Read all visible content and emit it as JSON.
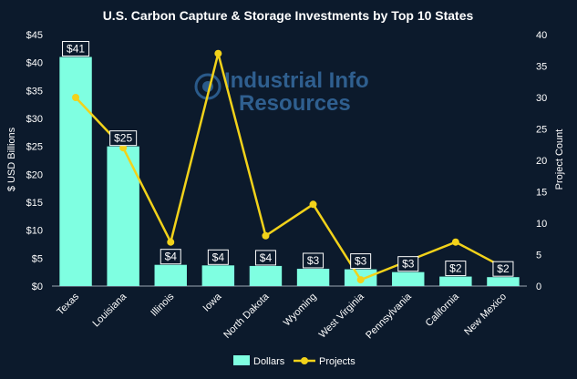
{
  "chart_data": {
    "type": "bar",
    "title": "U.S. Carbon Capture & Storage Investments by Top 10 States",
    "ylabel": "$ USD Billions",
    "y2label": "Project Count",
    "watermark": "Industrial Info Resources",
    "categories": [
      "Texas",
      "Louisiana",
      "Illinois",
      "Iowa",
      "North Dakota",
      "Wyoming",
      "West Virginia",
      "Pennsylvania",
      "California",
      "New Mexico"
    ],
    "ylim": [
      0,
      45
    ],
    "y_ticks": [
      0,
      5,
      10,
      15,
      20,
      25,
      30,
      35,
      40,
      45
    ],
    "y_tick_labels": [
      "$0",
      "$5",
      "$10",
      "$15",
      "$20",
      "$25",
      "$30",
      "$35",
      "$40",
      "$45"
    ],
    "y2lim": [
      0,
      40
    ],
    "y2_ticks": [
      0,
      5,
      10,
      15,
      20,
      25,
      30,
      35,
      40
    ],
    "y2_tick_labels": [
      "0",
      "5",
      "10",
      "15",
      "20",
      "25",
      "30",
      "35",
      "40"
    ],
    "series": [
      {
        "name": "Dollars",
        "type": "bar",
        "axis": "left",
        "color": "#7fffe1",
        "values": [
          41,
          25,
          3.8,
          3.7,
          3.6,
          3.1,
          3.0,
          2.5,
          1.7,
          1.6
        ],
        "data_labels": [
          "$41",
          "$25",
          "$4",
          "$4",
          "$4",
          "$3",
          "$3",
          "$3",
          "$2",
          "$2"
        ]
      },
      {
        "name": "Projects",
        "type": "line",
        "axis": "right",
        "color": "#f2d21a",
        "values": [
          30,
          22,
          7,
          37,
          8,
          13,
          1,
          4,
          7,
          3
        ]
      }
    ],
    "legend_position": "bottom",
    "grid": false
  }
}
